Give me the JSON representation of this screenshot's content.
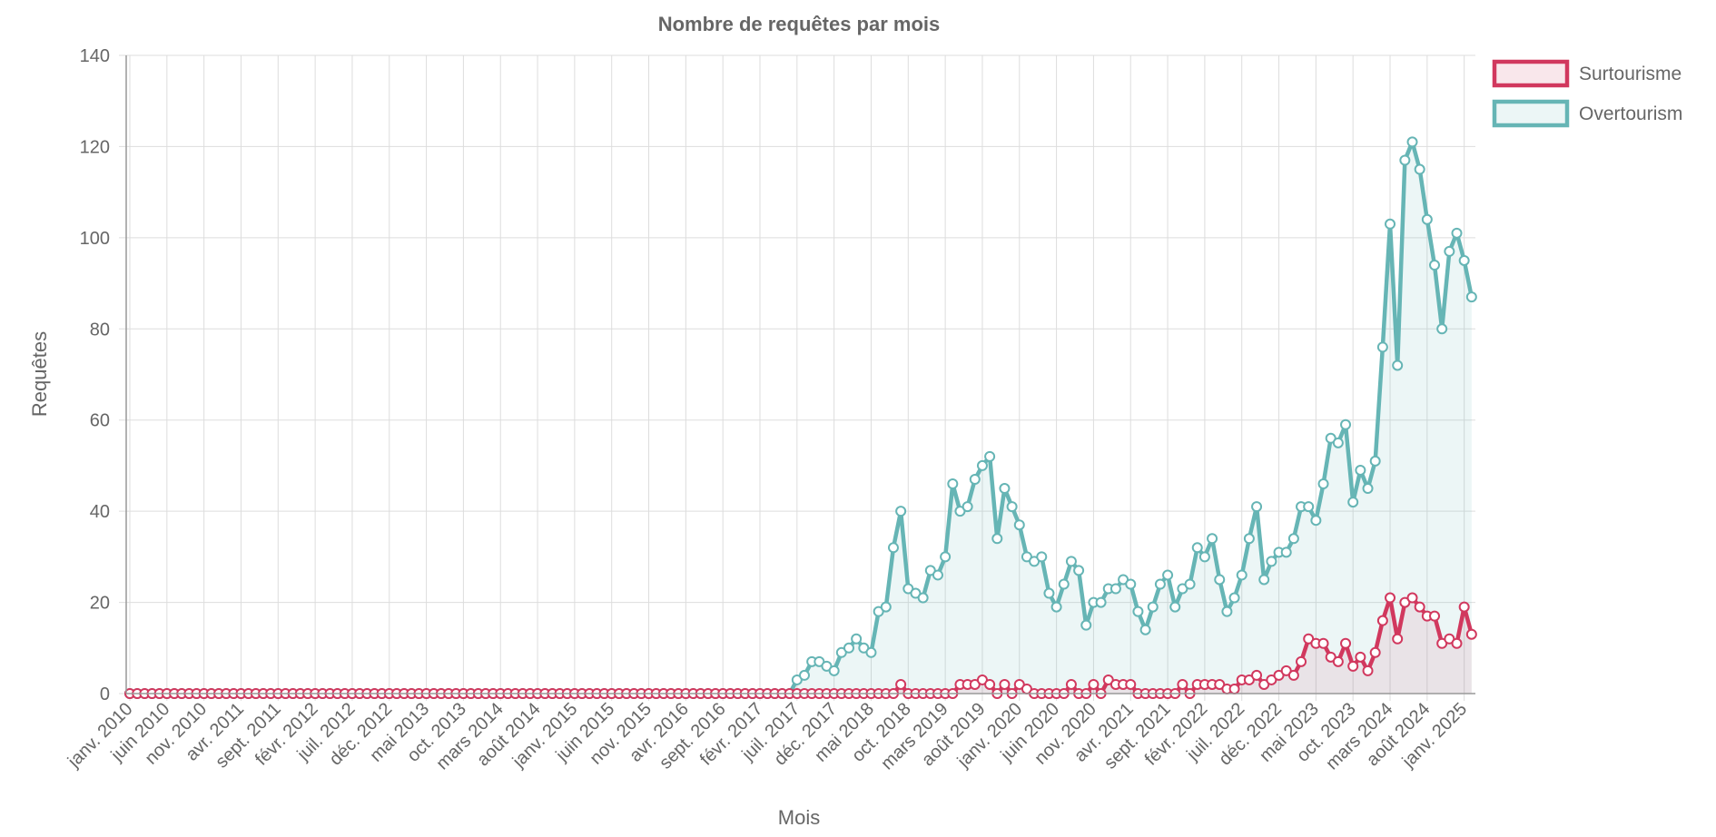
{
  "chart_data": {
    "type": "line",
    "title": "Nombre de requêtes par mois",
    "xlabel": "Mois",
    "ylabel": "Requêtes",
    "ylim": [
      0,
      140
    ],
    "yticks": [
      0,
      20,
      40,
      60,
      80,
      100,
      120,
      140
    ],
    "grid": true,
    "legend_position": "top-right",
    "start_month": "2010-01",
    "x_tick_labels": [
      "janv. 2010",
      "juin 2010",
      "nov. 2010",
      "avr. 2011",
      "sept. 2011",
      "févr. 2012",
      "juil. 2012",
      "déc. 2012",
      "mai 2013",
      "oct. 2013",
      "mars 2014",
      "août 2014",
      "janv. 2015",
      "juin 2015",
      "nov. 2015",
      "avr. 2016",
      "sept. 2016",
      "févr. 2017",
      "juil. 2017",
      "déc. 2017",
      "mai 2018",
      "oct. 2018",
      "mars 2019",
      "août 2019",
      "janv. 2020",
      "juin 2020",
      "nov. 2020",
      "avr. 2021",
      "sept. 2021",
      "févr. 2022",
      "juil. 2022",
      "déc. 2022",
      "mai 2023",
      "oct. 2023",
      "mars 2024",
      "août 2024",
      "janv. 2025"
    ],
    "series": [
      {
        "name": "Surtourisme",
        "color": "#d1385e",
        "fill": "rgba(209,56,94,0.10)",
        "values": [
          0,
          0,
          0,
          0,
          0,
          0,
          0,
          0,
          0,
          0,
          0,
          0,
          0,
          0,
          0,
          0,
          0,
          0,
          0,
          0,
          0,
          0,
          0,
          0,
          0,
          0,
          0,
          0,
          0,
          0,
          0,
          0,
          0,
          0,
          0,
          0,
          0,
          0,
          0,
          0,
          0,
          0,
          0,
          0,
          0,
          0,
          0,
          0,
          0,
          0,
          0,
          0,
          0,
          0,
          0,
          0,
          0,
          0,
          0,
          0,
          0,
          0,
          0,
          0,
          0,
          0,
          0,
          0,
          0,
          0,
          0,
          0,
          0,
          0,
          0,
          0,
          0,
          0,
          0,
          0,
          0,
          0,
          0,
          0,
          0,
          0,
          0,
          0,
          0,
          0,
          0,
          0,
          0,
          0,
          0,
          0,
          0,
          0,
          0,
          0,
          0,
          0,
          0,
          0,
          2,
          0,
          0,
          0,
          0,
          0,
          0,
          0,
          2,
          2,
          2,
          3,
          2,
          0,
          2,
          0,
          2,
          1,
          0,
          0,
          0,
          0,
          0,
          2,
          0,
          0,
          2,
          0,
          3,
          2,
          2,
          2,
          0,
          0,
          0,
          0,
          0,
          0,
          2,
          0,
          2,
          2,
          2,
          2,
          1,
          1,
          3,
          3,
          4,
          2,
          3,
          4,
          5,
          4,
          7,
          12,
          11,
          11,
          8,
          7,
          11,
          6,
          8,
          5,
          9,
          16,
          21,
          12,
          20,
          21,
          19,
          17,
          17,
          11,
          12,
          11,
          19,
          13
        ]
      },
      {
        "name": "Overtourism",
        "color": "#66b5b5",
        "fill": "rgba(102,181,181,0.12)",
        "values": [
          0,
          0,
          0,
          0,
          0,
          0,
          0,
          0,
          0,
          0,
          0,
          0,
          0,
          0,
          0,
          0,
          0,
          0,
          0,
          0,
          0,
          0,
          0,
          0,
          0,
          0,
          0,
          0,
          0,
          0,
          0,
          0,
          0,
          0,
          0,
          0,
          0,
          0,
          0,
          0,
          0,
          0,
          0,
          0,
          0,
          0,
          0,
          0,
          0,
          0,
          0,
          0,
          0,
          0,
          0,
          0,
          0,
          0,
          0,
          0,
          0,
          0,
          0,
          0,
          0,
          0,
          0,
          0,
          0,
          0,
          0,
          0,
          0,
          0,
          0,
          0,
          0,
          0,
          0,
          0,
          0,
          0,
          0,
          0,
          0,
          0,
          0,
          0,
          0,
          0,
          3,
          4,
          7,
          7,
          6,
          5,
          9,
          10,
          12,
          10,
          9,
          18,
          19,
          32,
          40,
          23,
          22,
          21,
          27,
          26,
          30,
          46,
          40,
          41,
          47,
          50,
          52,
          34,
          45,
          41,
          37,
          30,
          29,
          30,
          22,
          19,
          24,
          29,
          27,
          15,
          20,
          20,
          23,
          23,
          25,
          24,
          18,
          14,
          19,
          24,
          26,
          19,
          23,
          24,
          32,
          30,
          34,
          25,
          18,
          21,
          26,
          34,
          41,
          25,
          29,
          31,
          31,
          34,
          41,
          41,
          38,
          46,
          56,
          55,
          59,
          42,
          49,
          45,
          51,
          76,
          103,
          72,
          117,
          121,
          115,
          104,
          94,
          80,
          97,
          101,
          95,
          87
        ]
      }
    ]
  }
}
